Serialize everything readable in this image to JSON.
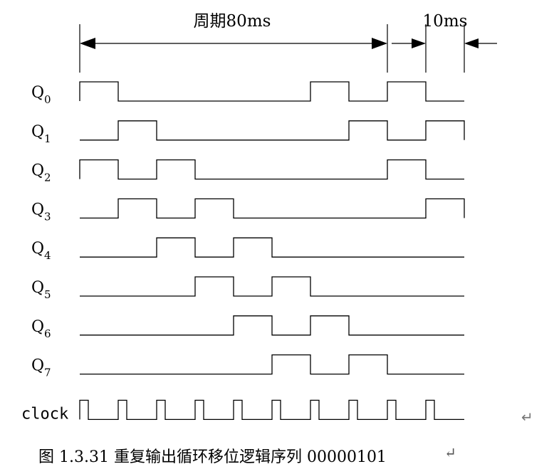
{
  "header": {
    "period_label": "周期80ms",
    "step_label": "10ms"
  },
  "signals": [
    {
      "name": "Q",
      "sub": "0",
      "bits": [
        1,
        0,
        0,
        0,
        0,
        0,
        1,
        0,
        1,
        0
      ]
    },
    {
      "name": "Q",
      "sub": "1",
      "bits": [
        0,
        1,
        0,
        0,
        0,
        0,
        0,
        1,
        0,
        1
      ]
    },
    {
      "name": "Q",
      "sub": "2",
      "bits": [
        1,
        0,
        1,
        0,
        0,
        0,
        0,
        0,
        1,
        0
      ]
    },
    {
      "name": "Q",
      "sub": "3",
      "bits": [
        0,
        1,
        0,
        1,
        0,
        0,
        0,
        0,
        0,
        1
      ]
    },
    {
      "name": "Q",
      "sub": "4",
      "bits": [
        0,
        0,
        1,
        0,
        1,
        0,
        0,
        0,
        0,
        0
      ]
    },
    {
      "name": "Q",
      "sub": "5",
      "bits": [
        0,
        0,
        0,
        1,
        0,
        1,
        0,
        0,
        0,
        0
      ]
    },
    {
      "name": "Q",
      "sub": "6",
      "bits": [
        0,
        0,
        0,
        0,
        1,
        0,
        1,
        0,
        0,
        0
      ]
    },
    {
      "name": "Q",
      "sub": "7",
      "bits": [
        0,
        0,
        0,
        0,
        0,
        1,
        0,
        1,
        0,
        0
      ]
    }
  ],
  "clock": {
    "label": "clock",
    "pulses": 10
  },
  "caption": {
    "text": "图 1.3.31  重复输出循环移位逻辑序列 00000101",
    "return_mark": "↵"
  },
  "stray_return_mark": "↵"
}
